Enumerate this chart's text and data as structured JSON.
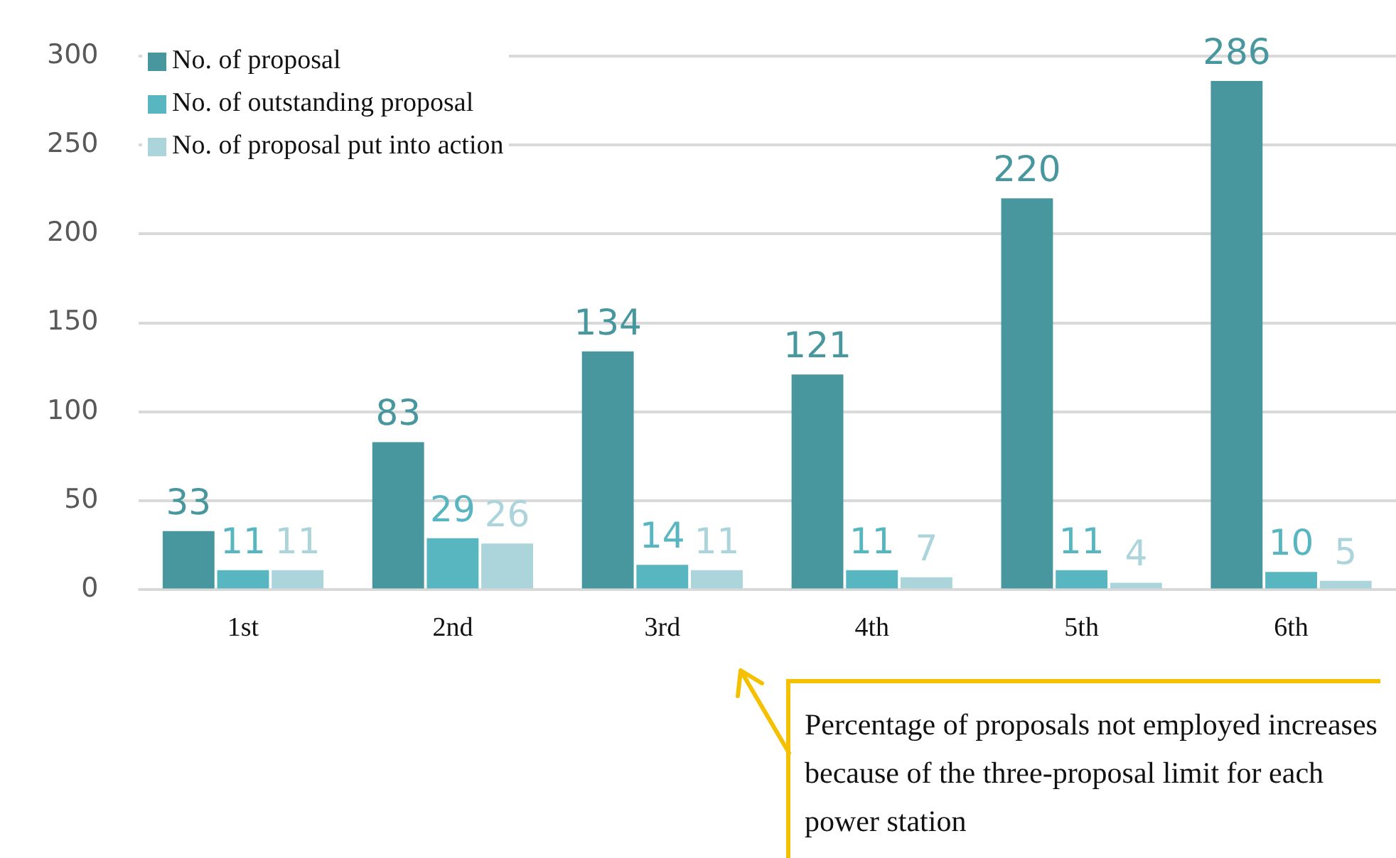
{
  "chart_data": {
    "type": "bar",
    "categories": [
      "1st",
      "2nd",
      "3rd",
      "4th",
      "5th",
      "6th"
    ],
    "series": [
      {
        "name": "No. of proposal",
        "color": "#48979e",
        "values": [
          33,
          83,
          134,
          121,
          220,
          286
        ]
      },
      {
        "name": "No. of outstanding proposal",
        "color": "#58b6c0",
        "values": [
          11,
          29,
          14,
          11,
          11,
          10
        ]
      },
      {
        "name": "No. of proposal put into action",
        "color": "#acd4db",
        "values": [
          11,
          26,
          11,
          7,
          4,
          5
        ]
      }
    ],
    "ylim": [
      0,
      300
    ],
    "yticks": [
      0,
      50,
      100,
      150,
      200,
      250,
      300
    ],
    "grid": "y",
    "legend": "top left",
    "data_labels": true,
    "annotations": [
      "Percentage of proposals not employed increases because of the three-proposal limit for each power station"
    ]
  }
}
